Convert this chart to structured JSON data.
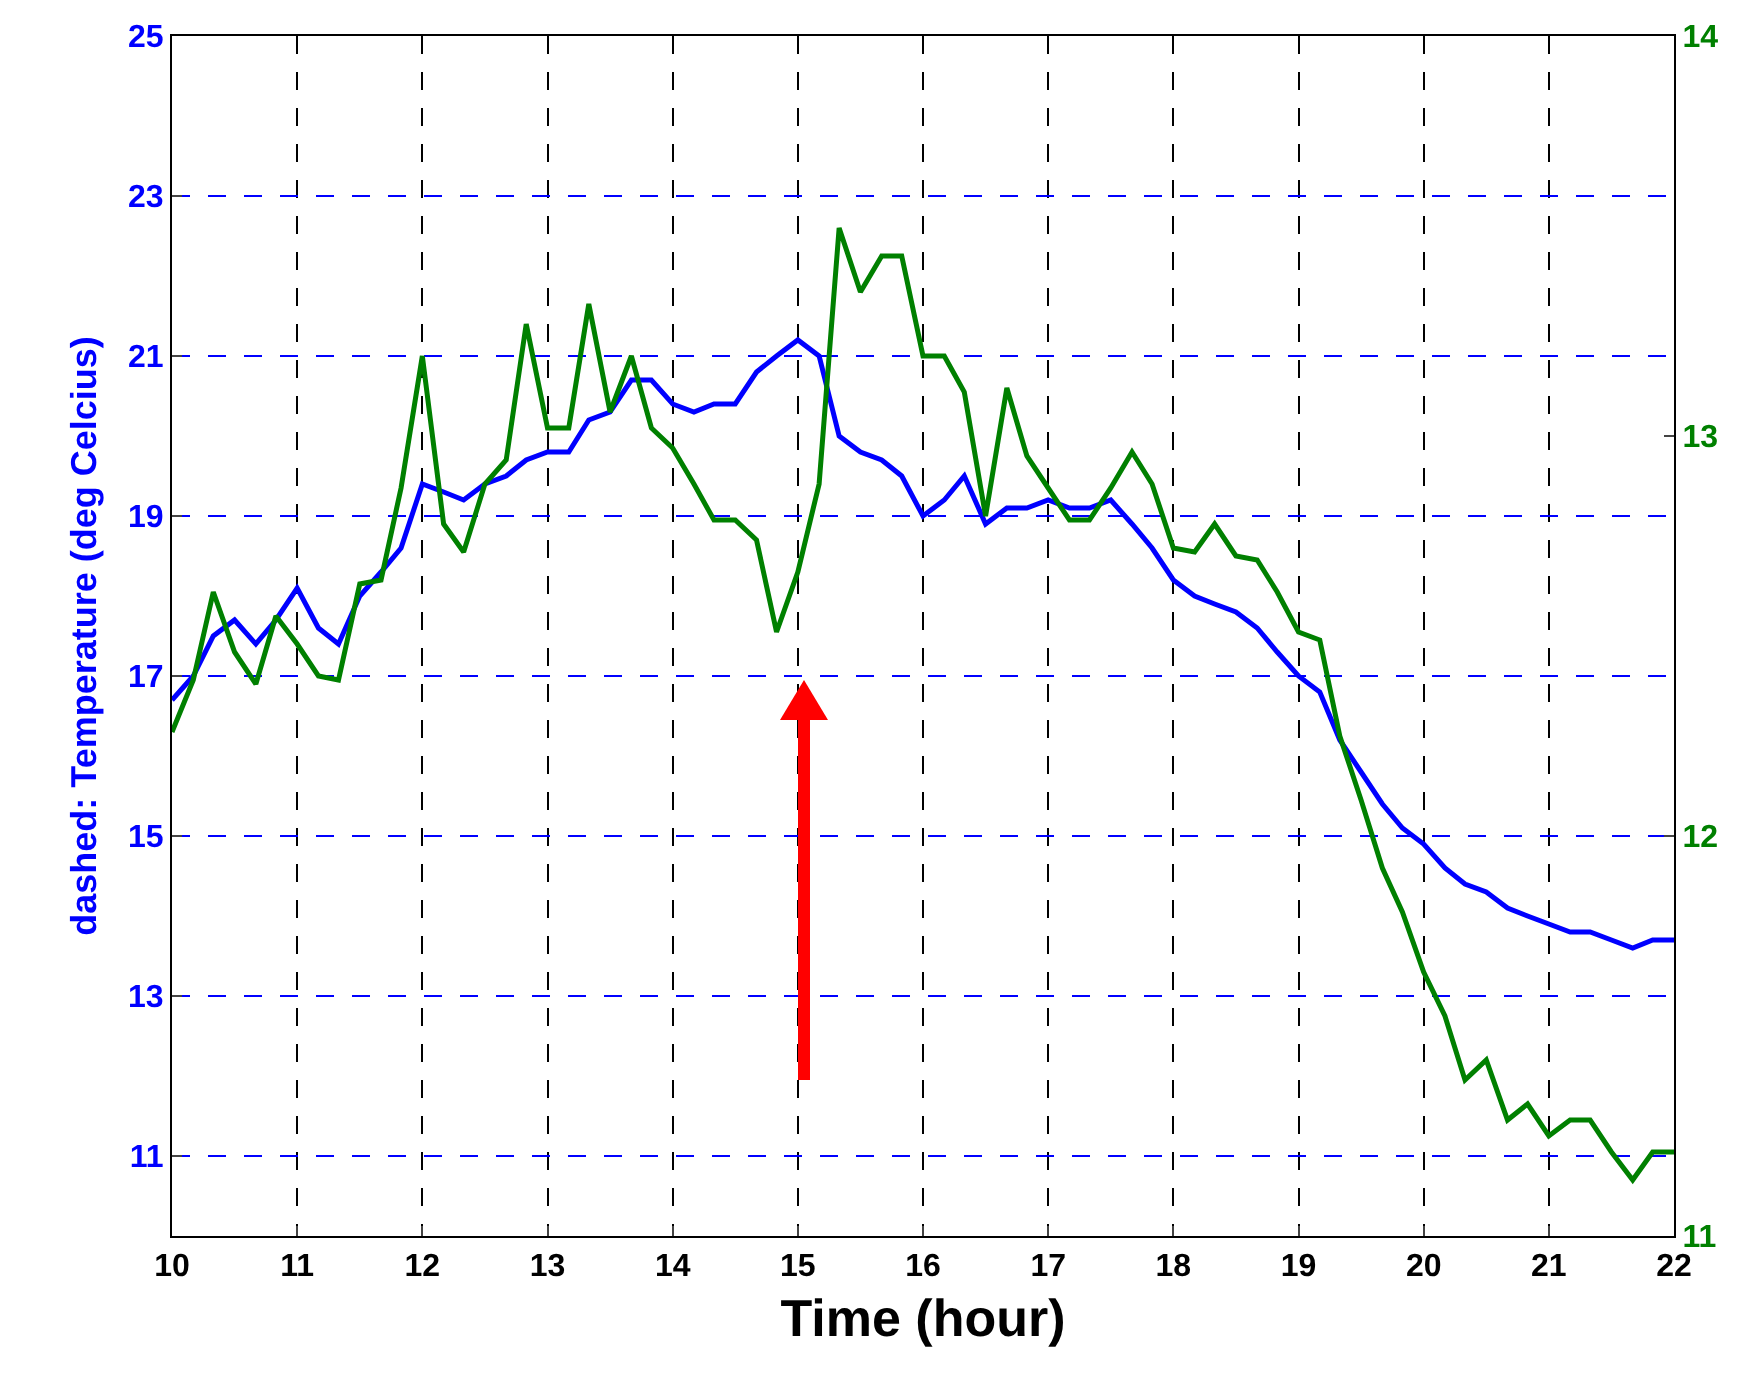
{
  "chart_data": {
    "type": "line",
    "xlabel": "Time (hour)",
    "ylabel": "dashed: Temperature (deg Celcius)",
    "x": [
      10,
      10.17,
      10.33,
      10.5,
      10.67,
      10.83,
      11,
      11.17,
      11.33,
      11.5,
      11.67,
      11.83,
      12,
      12.17,
      12.33,
      12.5,
      12.67,
      12.83,
      13,
      13.17,
      13.33,
      13.5,
      13.67,
      13.83,
      14,
      14.17,
      14.33,
      14.5,
      14.67,
      14.83,
      15,
      15.17,
      15.33,
      15.5,
      15.67,
      15.83,
      16,
      16.17,
      16.33,
      16.5,
      16.67,
      16.83,
      17,
      17.17,
      17.33,
      17.5,
      17.67,
      17.83,
      18,
      18.17,
      18.33,
      18.5,
      18.67,
      18.83,
      19,
      19.17,
      19.33,
      19.5,
      19.67,
      19.83,
      20,
      20.17,
      20.33,
      20.5,
      20.67,
      20.83,
      21,
      21.17,
      21.33,
      21.5,
      21.67,
      21.83,
      22
    ],
    "series": [
      {
        "color": "#0000ff",
        "values": [
          16.7,
          17.0,
          17.5,
          17.7,
          17.4,
          17.7,
          18.1,
          17.6,
          17.4,
          18.0,
          18.3,
          18.6,
          19.4,
          19.3,
          19.2,
          19.4,
          19.5,
          19.7,
          19.8,
          19.8,
          20.2,
          20.3,
          20.7,
          20.7,
          20.4,
          20.3,
          20.4,
          20.4,
          20.8,
          21.0,
          21.2,
          21.0,
          20.0,
          19.8,
          19.7,
          19.5,
          19.0,
          19.2,
          19.5,
          18.9,
          19.1,
          19.1,
          19.2,
          19.1,
          19.1,
          19.2,
          18.9,
          18.6,
          18.2,
          18.0,
          17.9,
          17.8,
          17.6,
          17.3,
          17.0,
          16.8,
          16.2,
          15.8,
          15.4,
          15.1,
          14.9,
          14.6,
          14.4,
          14.3,
          14.1,
          14.0,
          13.9,
          13.8,
          13.8,
          13.7,
          13.6,
          13.7,
          13.7
        ]
      },
      {
        "color": "#008000",
        "axis": "y2",
        "values": [
          12.26,
          12.39,
          12.61,
          12.46,
          12.38,
          12.55,
          12.48,
          12.4,
          12.39,
          12.63,
          12.64,
          12.87,
          13.2,
          12.78,
          12.71,
          12.88,
          12.94,
          13.28,
          13.02,
          13.02,
          13.33,
          13.06,
          13.2,
          13.02,
          12.97,
          12.88,
          12.79,
          12.79,
          12.74,
          12.51,
          12.66,
          12.88,
          13.52,
          13.36,
          13.45,
          13.45,
          13.2,
          13.2,
          13.11,
          12.8,
          13.12,
          12.95,
          12.87,
          12.79,
          12.79,
          12.87,
          12.96,
          12.88,
          12.72,
          12.71,
          12.78,
          12.7,
          12.69,
          12.61,
          12.51,
          12.49,
          12.25,
          12.09,
          11.92,
          11.81,
          11.66,
          11.55,
          11.39,
          11.44,
          11.29,
          11.33,
          11.25,
          11.29,
          11.29,
          11.21,
          11.14,
          11.21,
          11.21
        ]
      }
    ],
    "xlim": [
      10,
      22
    ],
    "xticks": [
      10,
      11,
      12,
      13,
      14,
      15,
      16,
      17,
      18,
      19,
      20,
      21,
      22
    ],
    "ylim": [
      10,
      25
    ],
    "yticks": [
      11,
      13,
      15,
      17,
      19,
      21,
      23,
      25
    ],
    "y2lim": [
      11,
      14
    ],
    "y2ticks": [
      11,
      12,
      13,
      14
    ],
    "grid": true,
    "marker": "none",
    "line_style": "solid"
  }
}
